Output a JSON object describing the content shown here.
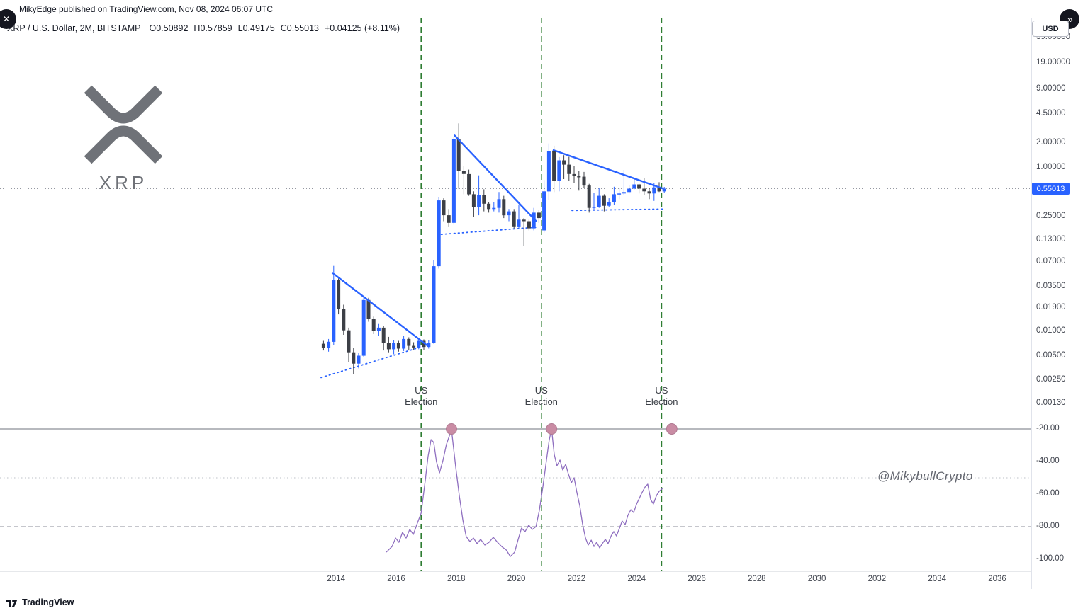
{
  "top_bar": {
    "published_text": "MikyEdge published on TradingView.com, Nov 08, 2024 06:07 UTC",
    "close_icon": "✕",
    "next_icon": "»"
  },
  "header": {
    "symbol_title": "XRP / U.S. Dollar, 2M, BITSTAMP",
    "ohlc": [
      {
        "label": "O",
        "value": "0.50892"
      },
      {
        "label": "H",
        "value": "0.57859"
      },
      {
        "label": "L",
        "value": "0.49175"
      },
      {
        "label": "C",
        "value": "0.55013"
      }
    ],
    "change_text": "+0.04125 (+8.11%)"
  },
  "right_panel": {
    "currency_button": "USD",
    "current_price_badge": "0.55013"
  },
  "logo": {
    "symbol_text": "XRP"
  },
  "watermark": "@MikybullCrypto",
  "attribution": "TradingView",
  "colors": {
    "up_candle": "#2962ff",
    "down_candle": "#3c3f46",
    "trendline": "#2962ff",
    "support_line": "#2962ff",
    "election_line": "#2e7d32",
    "oscillator_line": "#8f6fc0",
    "marker_fill": "#c98ca4",
    "marker_stroke": "#b07a92",
    "current_price_line": "#9598a1"
  },
  "chart_data": {
    "type": "candlestick",
    "symbol": "XRP/USD",
    "timeframe": "2M",
    "exchange": "BITSTAMP",
    "price_scale": "log",
    "current_price": 0.55013,
    "x_axis": {
      "years": [
        2014,
        2016,
        2018,
        2020,
        2022,
        2024,
        2026,
        2028,
        2030,
        2032,
        2034,
        2036
      ]
    },
    "y_axis_price": {
      "labels": [
        {
          "value": 39,
          "text": "39.00000"
        },
        {
          "value": 19,
          "text": "19.00000"
        },
        {
          "value": 9,
          "text": "9.00000"
        },
        {
          "value": 4.5,
          "text": "4.50000"
        },
        {
          "value": 2,
          "text": "2.00000"
        },
        {
          "value": 1,
          "text": "1.00000"
        },
        {
          "value": 0.25,
          "text": "0.25000"
        },
        {
          "value": 0.13,
          "text": "0.13000"
        },
        {
          "value": 0.07,
          "text": "0.07000"
        },
        {
          "value": 0.035,
          "text": "0.03500"
        },
        {
          "value": 0.019,
          "text": "0.01900"
        },
        {
          "value": 0.01,
          "text": "0.01000"
        },
        {
          "value": 0.005,
          "text": "0.00500"
        },
        {
          "value": 0.0025,
          "text": "0.00250"
        },
        {
          "value": 0.0013,
          "text": "0.00130"
        }
      ]
    },
    "candles": [
      [
        2013.58,
        0.007,
        0.0076,
        0.0058,
        0.0062
      ],
      [
        2013.75,
        0.0062,
        0.008,
        0.0056,
        0.0074
      ],
      [
        2013.92,
        0.0074,
        0.0625,
        0.0068,
        0.042
      ],
      [
        2014.08,
        0.042,
        0.044,
        0.016,
        0.0185
      ],
      [
        2014.25,
        0.0185,
        0.021,
        0.009,
        0.0102
      ],
      [
        2014.42,
        0.0102,
        0.011,
        0.0042,
        0.0055
      ],
      [
        2014.58,
        0.0055,
        0.0062,
        0.003,
        0.004
      ],
      [
        2014.75,
        0.004,
        0.0054,
        0.0035,
        0.005
      ],
      [
        2014.92,
        0.005,
        0.026,
        0.0048,
        0.024
      ],
      [
        2015.08,
        0.024,
        0.0255,
        0.013,
        0.014
      ],
      [
        2015.25,
        0.014,
        0.015,
        0.0092,
        0.01
      ],
      [
        2015.42,
        0.01,
        0.0122,
        0.0088,
        0.011
      ],
      [
        2015.58,
        0.011,
        0.0115,
        0.0058,
        0.0072
      ],
      [
        2015.75,
        0.0072,
        0.0085,
        0.0055,
        0.006
      ],
      [
        2015.92,
        0.006,
        0.0078,
        0.0052,
        0.0072
      ],
      [
        2016.08,
        0.0072,
        0.0076,
        0.0056,
        0.0061
      ],
      [
        2016.25,
        0.0061,
        0.0088,
        0.0057,
        0.008
      ],
      [
        2016.42,
        0.008,
        0.0084,
        0.0058,
        0.0066
      ],
      [
        2016.58,
        0.0066,
        0.0073,
        0.0059,
        0.0063
      ],
      [
        2016.75,
        0.0063,
        0.0081,
        0.006,
        0.0076
      ],
      [
        2016.92,
        0.0076,
        0.0079,
        0.0059,
        0.0064
      ],
      [
        2017.08,
        0.0064,
        0.0078,
        0.0061,
        0.0072
      ],
      [
        2017.25,
        0.0072,
        0.074,
        0.007,
        0.062
      ],
      [
        2017.42,
        0.062,
        0.43,
        0.058,
        0.395
      ],
      [
        2017.58,
        0.395,
        0.42,
        0.22,
        0.26
      ],
      [
        2017.75,
        0.26,
        0.31,
        0.19,
        0.21
      ],
      [
        2017.92,
        0.21,
        2.35,
        0.2,
        2.2
      ],
      [
        2018.08,
        2.2,
        3.45,
        0.55,
        0.91
      ],
      [
        2018.25,
        0.91,
        1.05,
        0.47,
        0.83
      ],
      [
        2018.42,
        0.83,
        0.94,
        0.45,
        0.47
      ],
      [
        2018.58,
        0.47,
        0.51,
        0.25,
        0.33
      ],
      [
        2018.75,
        0.33,
        0.8,
        0.26,
        0.46
      ],
      [
        2018.92,
        0.46,
        0.54,
        0.29,
        0.36
      ],
      [
        2019.08,
        0.36,
        0.38,
        0.28,
        0.31
      ],
      [
        2019.25,
        0.31,
        0.38,
        0.29,
        0.32
      ],
      [
        2019.42,
        0.32,
        0.5,
        0.28,
        0.41
      ],
      [
        2019.58,
        0.41,
        0.45,
        0.24,
        0.26
      ],
      [
        2019.75,
        0.26,
        0.31,
        0.22,
        0.29
      ],
      [
        2019.92,
        0.29,
        0.31,
        0.18,
        0.19
      ],
      [
        2020.08,
        0.19,
        0.35,
        0.18,
        0.23
      ],
      [
        2020.25,
        0.23,
        0.24,
        0.11,
        0.22
      ],
      [
        2020.42,
        0.22,
        0.23,
        0.17,
        0.18
      ],
      [
        2020.58,
        0.18,
        0.32,
        0.17,
        0.28
      ],
      [
        2020.75,
        0.28,
        0.3,
        0.21,
        0.24
      ],
      [
        2020.92,
        0.17,
        0.7,
        0.16,
        0.51
      ],
      [
        2021.08,
        0.51,
        1.96,
        0.4,
        1.57
      ],
      [
        2021.25,
        1.57,
        1.84,
        0.5,
        0.69
      ],
      [
        2021.42,
        0.69,
        1.34,
        0.51,
        1.22
      ],
      [
        2021.58,
        1.22,
        1.41,
        0.72,
        1.08
      ],
      [
        2021.75,
        1.08,
        1.35,
        0.69,
        0.83
      ],
      [
        2021.92,
        0.83,
        1.05,
        0.65,
        0.78
      ],
      [
        2022.08,
        0.78,
        0.91,
        0.52,
        0.77
      ],
      [
        2022.25,
        0.77,
        0.88,
        0.56,
        0.6
      ],
      [
        2022.42,
        0.6,
        0.63,
        0.28,
        0.32
      ],
      [
        2022.58,
        0.32,
        0.49,
        0.3,
        0.33
      ],
      [
        2022.75,
        0.33,
        0.56,
        0.32,
        0.45
      ],
      [
        2022.92,
        0.45,
        0.47,
        0.29,
        0.34
      ],
      [
        2023.08,
        0.34,
        0.42,
        0.33,
        0.38
      ],
      [
        2023.25,
        0.38,
        0.58,
        0.35,
        0.47
      ],
      [
        2023.42,
        0.47,
        0.56,
        0.41,
        0.48
      ],
      [
        2023.58,
        0.48,
        0.93,
        0.46,
        0.5
      ],
      [
        2023.75,
        0.5,
        0.61,
        0.48,
        0.55
      ],
      [
        2023.92,
        0.55,
        0.75,
        0.54,
        0.62
      ],
      [
        2024.08,
        0.62,
        0.63,
        0.48,
        0.55
      ],
      [
        2024.25,
        0.55,
        0.74,
        0.46,
        0.51
      ],
      [
        2024.42,
        0.51,
        0.56,
        0.41,
        0.48
      ],
      [
        2024.58,
        0.48,
        0.65,
        0.39,
        0.57
      ],
      [
        2024.75,
        0.57,
        0.66,
        0.5,
        0.51
      ],
      [
        2024.92,
        0.50892,
        0.57859,
        0.49175,
        0.55013
      ]
    ],
    "trendlines": [
      [
        [
          2013.86,
          0.052
        ],
        [
          2017.05,
          0.0066
        ]
      ],
      [
        [
          2017.93,
          2.49
        ],
        [
          2020.67,
          0.218
        ]
      ],
      [
        [
          2021.21,
          1.64
        ],
        [
          2024.87,
          0.552
        ]
      ]
    ],
    "support_lines_dotted": [
      [
        [
          2013.5,
          0.0027
        ],
        [
          2017.12,
          0.0069
        ]
      ],
      [
        [
          2017.5,
          0.152
        ],
        [
          2020.7,
          0.186
        ]
      ],
      [
        [
          2021.85,
          0.298
        ],
        [
          2024.95,
          0.31
        ]
      ]
    ],
    "election_lines": [
      {
        "t": 2016.83,
        "label": "US Election"
      },
      {
        "t": 2020.83,
        "label": "US Election"
      },
      {
        "t": 2024.83,
        "label": "US Election"
      }
    ],
    "oscillator": {
      "range": [
        -100,
        -20
      ],
      "levels": [
        {
          "value": -20,
          "text": "-20.00",
          "style": "solid"
        },
        {
          "value": -40,
          "text": "-40.00",
          "style": "none"
        },
        {
          "value": -50,
          "text": "",
          "style": "dotted"
        },
        {
          "value": -60,
          "text": "-60.00",
          "style": "none"
        },
        {
          "value": -80,
          "text": "-80.00",
          "style": "dashed"
        },
        {
          "value": -100,
          "text": "-100.00",
          "style": "none"
        }
      ],
      "markers": [
        {
          "t": 2017.84,
          "v": -20
        },
        {
          "t": 2021.17,
          "v": -20
        },
        {
          "t": 2025.17,
          "v": -20
        }
      ],
      "points": [
        [
          2015.67,
          -95.7
        ],
        [
          2015.86,
          -92.2
        ],
        [
          2015.98,
          -87.0
        ],
        [
          2016.09,
          -89.6
        ],
        [
          2016.21,
          -83.5
        ],
        [
          2016.33,
          -87.0
        ],
        [
          2016.45,
          -81.7
        ],
        [
          2016.57,
          -84.8
        ],
        [
          2016.68,
          -79.1
        ],
        [
          2016.83,
          -71.7
        ],
        [
          2016.97,
          -51.3
        ],
        [
          2017.06,
          -37.0
        ],
        [
          2017.16,
          -26.5
        ],
        [
          2017.25,
          -28.3
        ],
        [
          2017.34,
          -40.0
        ],
        [
          2017.44,
          -47.0
        ],
        [
          2017.56,
          -39.1
        ],
        [
          2017.67,
          -29.6
        ],
        [
          2017.84,
          -20.4
        ],
        [
          2017.98,
          -43.5
        ],
        [
          2018.1,
          -60.9
        ],
        [
          2018.22,
          -76.1
        ],
        [
          2018.33,
          -86.1
        ],
        [
          2018.45,
          -89.1
        ],
        [
          2018.57,
          -87.0
        ],
        [
          2018.69,
          -90.4
        ],
        [
          2018.81,
          -87.8
        ],
        [
          2018.95,
          -91.3
        ],
        [
          2019.09,
          -89.6
        ],
        [
          2019.23,
          -86.5
        ],
        [
          2019.37,
          -89.6
        ],
        [
          2019.51,
          -92.2
        ],
        [
          2019.66,
          -94.3
        ],
        [
          2019.8,
          -98.3
        ],
        [
          2019.94,
          -95.7
        ],
        [
          2020.06,
          -87.8
        ],
        [
          2020.17,
          -80.9
        ],
        [
          2020.29,
          -83.0
        ],
        [
          2020.41,
          -79.1
        ],
        [
          2020.53,
          -81.7
        ],
        [
          2020.65,
          -80.0
        ],
        [
          2020.76,
          -70.4
        ],
        [
          2020.88,
          -55.7
        ],
        [
          2021.0,
          -39.1
        ],
        [
          2021.09,
          -27.0
        ],
        [
          2021.17,
          -20.0
        ],
        [
          2021.26,
          -35.7
        ],
        [
          2021.35,
          -42.6
        ],
        [
          2021.45,
          -39.1
        ],
        [
          2021.54,
          -45.2
        ],
        [
          2021.64,
          -41.7
        ],
        [
          2021.73,
          -47.8
        ],
        [
          2021.83,
          -53.0
        ],
        [
          2021.92,
          -50.0
        ],
        [
          2022.01,
          -58.7
        ],
        [
          2022.11,
          -67.4
        ],
        [
          2022.2,
          -78.3
        ],
        [
          2022.3,
          -87.0
        ],
        [
          2022.39,
          -91.3
        ],
        [
          2022.49,
          -88.3
        ],
        [
          2022.58,
          -92.2
        ],
        [
          2022.67,
          -89.6
        ],
        [
          2022.77,
          -93.0
        ],
        [
          2022.86,
          -90.4
        ],
        [
          2022.96,
          -87.8
        ],
        [
          2023.05,
          -90.4
        ],
        [
          2023.15,
          -85.7
        ],
        [
          2023.24,
          -83.0
        ],
        [
          2023.33,
          -85.7
        ],
        [
          2023.43,
          -80.9
        ],
        [
          2023.52,
          -76.5
        ],
        [
          2023.62,
          -78.7
        ],
        [
          2023.71,
          -73.0
        ],
        [
          2023.81,
          -69.6
        ],
        [
          2023.9,
          -71.3
        ],
        [
          2024.0,
          -66.1
        ],
        [
          2024.09,
          -62.6
        ],
        [
          2024.18,
          -59.1
        ],
        [
          2024.28,
          -55.7
        ],
        [
          2024.37,
          -53.9
        ],
        [
          2024.47,
          -63.5
        ],
        [
          2024.56,
          -66.1
        ],
        [
          2024.66,
          -60.9
        ],
        [
          2024.75,
          -58.3
        ],
        [
          2024.86,
          -56.5
        ]
      ]
    }
  }
}
